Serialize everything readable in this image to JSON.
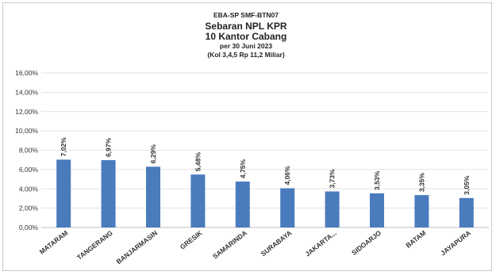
{
  "chart_data": {
    "type": "bar",
    "title_lines": [
      "EBA-SP  SMF-BTN07",
      "Sebaran NPL KPR",
      "10 Kantor Cabang",
      "per 30 Juni 2023",
      "(Kol 3,4,5 Rp 11,2 Miliar)"
    ],
    "categories": [
      "MATARAM",
      "TANGERANG",
      "BANJARMASIN",
      "GRESIK",
      "SAMARINDA",
      "SURABAYA",
      "JAKARTA...",
      "SIDOARJO",
      "BATAM",
      "JAYAPURA"
    ],
    "values": [
      7.02,
      6.97,
      6.29,
      5.48,
      4.75,
      4.06,
      3.73,
      3.53,
      3.35,
      3.05
    ],
    "data_labels": [
      "7,02%",
      "6,97%",
      "6,29%",
      "5,48%",
      "4,75%",
      "4,06%",
      "3,73%",
      "3,53%",
      "3,35%",
      "3,05%"
    ],
    "y_ticks": [
      0,
      2,
      4,
      6,
      8,
      10,
      12,
      14,
      16
    ],
    "y_tick_labels": [
      "0,00%",
      "2,00%",
      "4,00%",
      "6,00%",
      "8,00%",
      "10,00%",
      "12,00%",
      "14,00%",
      "16,00%"
    ],
    "ylim": [
      0,
      16
    ],
    "grid": true,
    "bar_color": "#4a7bbd",
    "grid_color": "#d9d9d9",
    "xlabel": "",
    "ylabel": ""
  }
}
